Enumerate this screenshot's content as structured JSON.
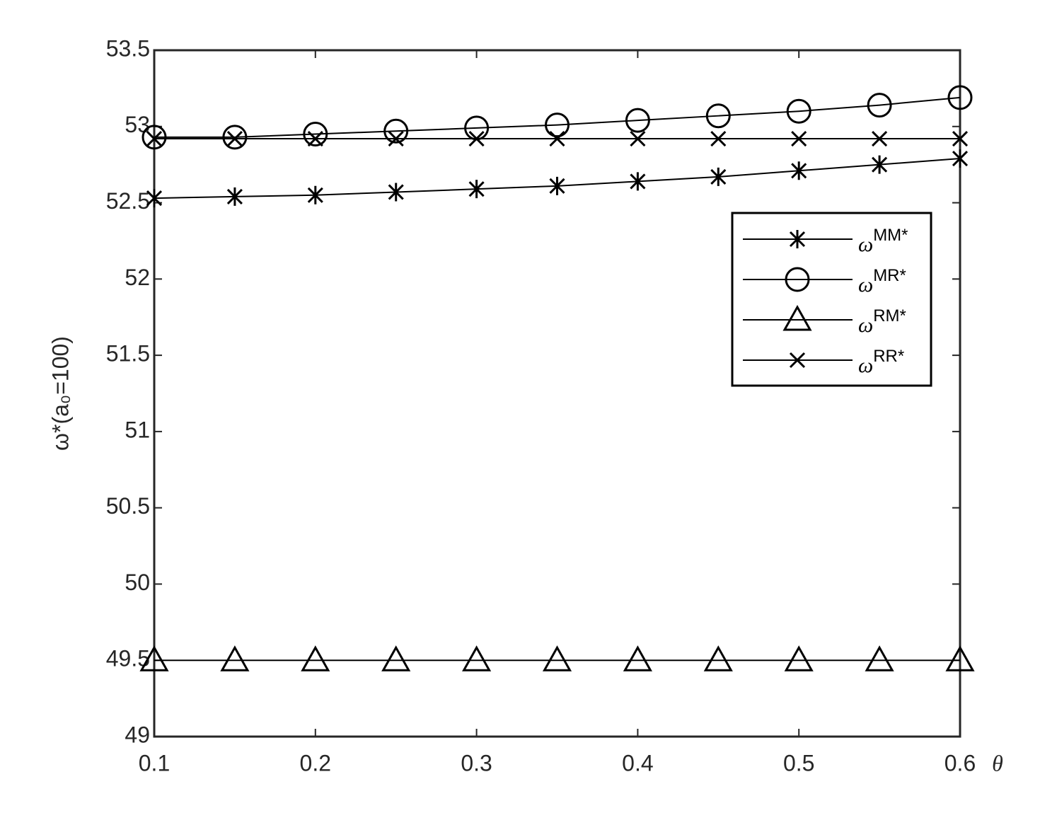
{
  "chart_data": {
    "type": "line",
    "xlabel": "θ",
    "ylabel": "ω*(a₀=100)",
    "x": [
      0.1,
      0.15,
      0.2,
      0.25,
      0.3,
      0.35,
      0.4,
      0.45,
      0.5,
      0.55,
      0.6
    ],
    "xlim": [
      0.1,
      0.6
    ],
    "xticks": [
      0.1,
      0.2,
      0.3,
      0.4,
      0.5,
      0.6
    ],
    "ylim": [
      49,
      53.5
    ],
    "yticks": [
      49,
      49.5,
      50,
      50.5,
      51,
      51.5,
      52,
      52.5,
      53,
      53.5
    ],
    "legend_symbol": "ω",
    "legend": "upper right",
    "series": [
      {
        "name": "MM*",
        "color": "#000000",
        "marker": "asterisk",
        "values": [
          52.53,
          52.54,
          52.55,
          52.57,
          52.59,
          52.61,
          52.64,
          52.67,
          52.71,
          52.75,
          52.79
        ]
      },
      {
        "name": "MR*",
        "color": "#000000",
        "marker": "circle",
        "values": [
          52.93,
          52.93,
          52.95,
          52.97,
          52.99,
          53.01,
          53.04,
          53.07,
          53.1,
          53.14,
          53.19
        ]
      },
      {
        "name": "RM*",
        "color": "#000000",
        "marker": "triangle",
        "values": [
          49.5,
          49.5,
          49.5,
          49.5,
          49.5,
          49.5,
          49.5,
          49.5,
          49.5,
          49.5,
          49.5
        ]
      },
      {
        "name": "RR*",
        "color": "#000000",
        "marker": "x",
        "values": [
          52.92,
          52.92,
          52.92,
          52.92,
          52.92,
          52.92,
          52.92,
          52.92,
          52.92,
          52.92,
          52.92
        ]
      }
    ]
  }
}
